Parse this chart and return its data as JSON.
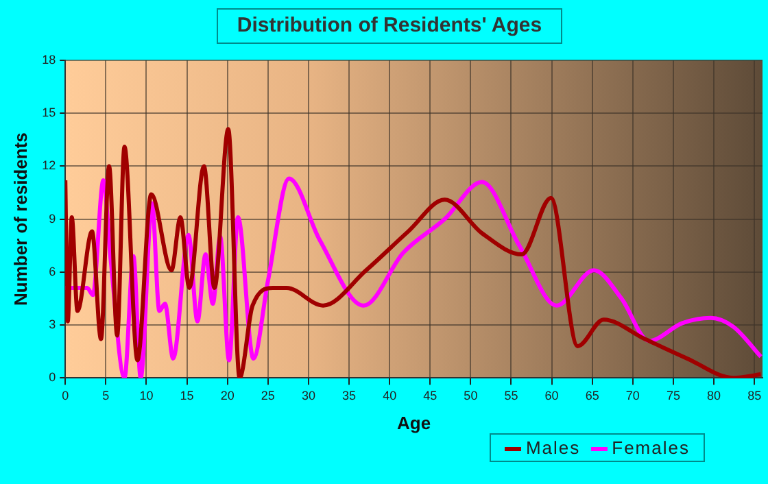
{
  "chart_data": {
    "type": "line",
    "title": "Distribution of Residents' Ages",
    "xlabel": "Age",
    "ylabel": "Number of residents",
    "xlim": [
      0,
      86
    ],
    "xticks": [
      0,
      5,
      10,
      15,
      20,
      25,
      30,
      35,
      40,
      45,
      50,
      55,
      60,
      65,
      70,
      75,
      80,
      85
    ],
    "ylim": [
      0,
      18
    ],
    "yticks": [
      0,
      3,
      6,
      9,
      12,
      15,
      18
    ],
    "grid": true,
    "legend": "bottom right",
    "marker": "none",
    "line_style": "solid",
    "series": [
      {
        "name": "Males",
        "color": "#a00000",
        "x": [
          0,
          0.3,
          0.8,
          1.5,
          3.3,
          4.4,
          5.4,
          6.4,
          7.3,
          8.9,
          10.6,
          13.1,
          14.2,
          15.3,
          17.1,
          18.4,
          20.1,
          21.5,
          23.1,
          25.6,
          27.3,
          31.8,
          37.1,
          42.3,
          46.8,
          51.4,
          56.3,
          59.9,
          63.2,
          66.4,
          71.5,
          76.7,
          82.4,
          85.8
        ],
        "values": [
          11.2,
          3.2,
          9.1,
          3.8,
          8.3,
          2.2,
          12,
          2.4,
          13.1,
          1,
          10.4,
          6.1,
          9.1,
          5.1,
          12,
          5.1,
          14.1,
          0,
          4.1,
          5.1,
          5.1,
          4.1,
          6.1,
          8.3,
          10.1,
          8.2,
          7,
          10.2,
          1.8,
          3.3,
          2.2,
          1.1,
          0,
          0.2
        ]
      },
      {
        "name": "Females",
        "color": "#ff00ff",
        "x": [
          0,
          2.7,
          3.4,
          4.7,
          5.6,
          7.3,
          8.4,
          9.3,
          10.7,
          11.6,
          12.3,
          13.3,
          15.2,
          16.3,
          17.3,
          18.2,
          19.1,
          20.2,
          21.3,
          23.2,
          25,
          27.6,
          31.4,
          36.8,
          41.7,
          46.8,
          51.4,
          56,
          60.6,
          65.2,
          68.6,
          72,
          76.1,
          79.6,
          82.4,
          85.8
        ],
        "values": [
          5.1,
          5.1,
          4.7,
          11.2,
          6.7,
          0,
          6.9,
          0,
          9.9,
          3.8,
          4.2,
          1.1,
          8.1,
          3.2,
          7,
          4.2,
          8,
          1,
          9.1,
          1.1,
          5.5,
          11.3,
          7.8,
          4.1,
          7.1,
          9,
          11.1,
          7.5,
          4.1,
          6.1,
          4.5,
          2.1,
          3.1,
          3.4,
          2.9,
          1.2
        ]
      }
    ]
  }
}
